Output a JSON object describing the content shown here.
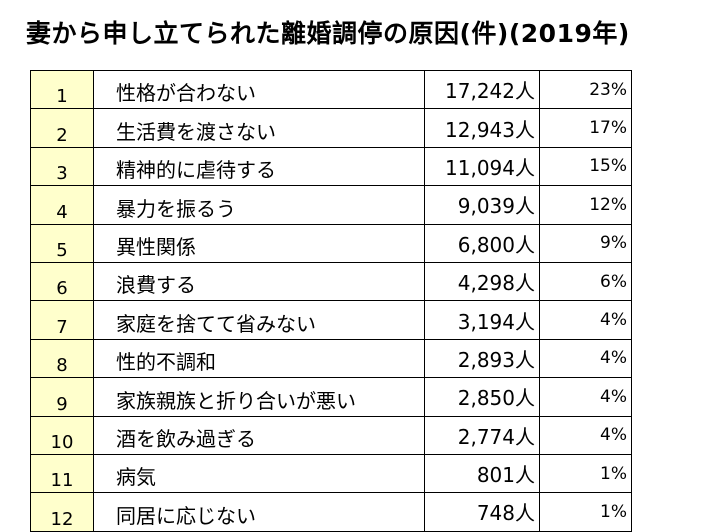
{
  "title": "妻から申し立てられた離婚調停の原因(件)(2019年)",
  "rows": [
    {
      "rank": "1",
      "reason": "性格が合わない",
      "count": "17,242人",
      "share": "23%"
    },
    {
      "rank": "2",
      "reason": "生活費を渡さない",
      "count": "12,943人",
      "share": "17%"
    },
    {
      "rank": "3",
      "reason": "精神的に虐待する",
      "count": "11,094人",
      "share": "15%"
    },
    {
      "rank": "4",
      "reason": "暴力を振るう",
      "count": "9,039人",
      "share": "12%"
    },
    {
      "rank": "5",
      "reason": "異性関係",
      "count": "6,800人",
      "share": "9%"
    },
    {
      "rank": "6",
      "reason": "浪費する",
      "count": "4,298人",
      "share": "6%"
    },
    {
      "rank": "7",
      "reason": "家庭を捨てて省みない",
      "count": "3,194人",
      "share": "4%"
    },
    {
      "rank": "8",
      "reason": "性的不調和",
      "count": "2,893人",
      "share": "4%"
    },
    {
      "rank": "9",
      "reason": "家族親族と折り合いが悪い",
      "count": "2,850人",
      "share": "4%"
    },
    {
      "rank": "10",
      "reason": "酒を飲み過ぎる",
      "count": "2,774人",
      "share": "4%"
    },
    {
      "rank": "11",
      "reason": "病気",
      "count": "801人",
      "share": "1%"
    },
    {
      "rank": "12",
      "reason": "同居に応じない",
      "count": "748人",
      "share": "1%"
    }
  ]
}
